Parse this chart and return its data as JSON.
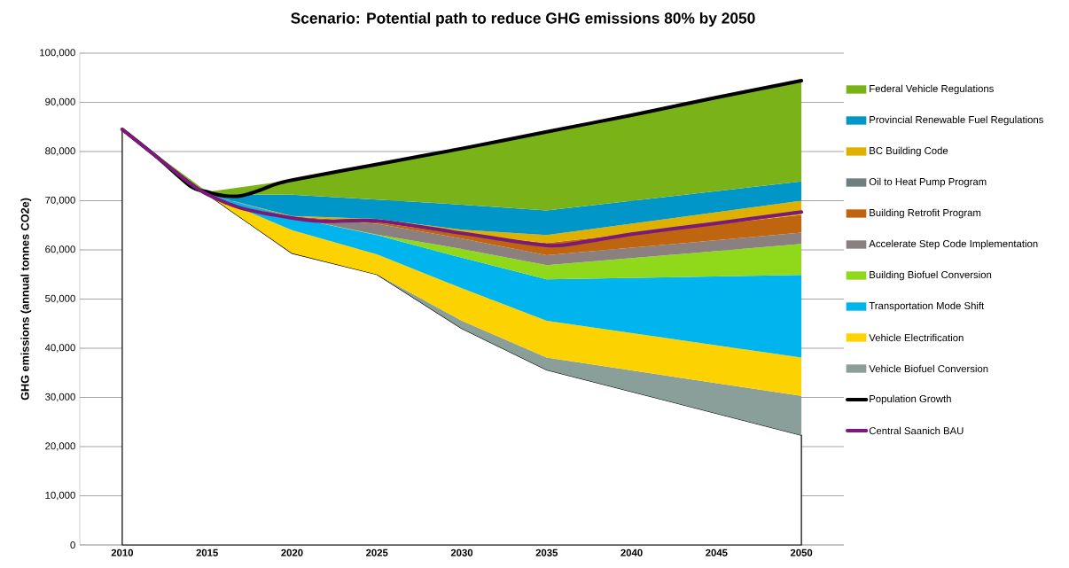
{
  "chart_data": {
    "type": "area",
    "title": "Scenario: Potential path to reduce GHG emissions 80% by 2050",
    "ylabel": "GHG emissions (annual tonnes CO2e)",
    "x": [
      2010,
      2015,
      2020,
      2025,
      2030,
      2035,
      2050
    ],
    "stacked": true,
    "grid": "y",
    "legend": "right",
    "xlim": [
      2007.5,
      2052.5
    ],
    "ylim": [
      0,
      100000
    ],
    "xticks": [
      2010,
      2015,
      2020,
      2025,
      2030,
      2035,
      2040,
      2045,
      2050
    ],
    "yticks": [
      0,
      {
        "value": 10000,
        "label": "10,000"
      },
      {
        "value": 20000,
        "label": "20,000"
      },
      {
        "value": 30000,
        "label": "30,000"
      },
      {
        "value": 40000,
        "label": "40,000"
      },
      {
        "value": 50000,
        "label": "50,000"
      },
      {
        "value": 60000,
        "label": "60,000"
      },
      {
        "value": 70000,
        "label": "70,000"
      },
      {
        "value": 80000,
        "label": "80,000"
      },
      {
        "value": 90000,
        "label": "90,000"
      },
      {
        "value": 100000,
        "label": "100,000"
      }
    ],
    "series": [
      {
        "color": "#ffffff",
        "values": [
          84500,
          71300,
          59300,
          55000,
          44000,
          35600,
          22300
        ]
      },
      {
        "name": "Vehicle Biofuel Conversion",
        "color": "#8a9e9a",
        "values": [
          0,
          0,
          0,
          0,
          1600,
          2500,
          8000
        ]
      },
      {
        "name": "Vehicle Electrification",
        "color": "#fcd200",
        "values": [
          0,
          0,
          4700,
          4100,
          6600,
          7500,
          7800
        ]
      },
      {
        "name": "Transportation Mode Shift",
        "color": "#00b4ee",
        "values": [
          0,
          0,
          2600,
          3900,
          6200,
          8400,
          16800
        ]
      },
      {
        "name": "Building Biofuel Conversion",
        "color": "#8fd81a",
        "values": [
          0,
          0,
          0,
          100,
          1800,
          2900,
          6300
        ]
      },
      {
        "name": "Accelerate Step Code Implementation",
        "color": "#8a8080",
        "values": [
          0,
          0,
          0,
          2200,
          2100,
          2000,
          2300
        ]
      },
      {
        "name": "Building Retrofit Program",
        "color": "#c0650f",
        "values": [
          0,
          0,
          200,
          300,
          900,
          2500,
          3600
        ]
      },
      {
        "name": "Oil to Heat Pump Program",
        "color": "#6e7f80",
        "values": [
          null,
          null,
          null,
          null,
          null,
          null,
          null
        ]
      },
      {
        "name": "BC Building Code",
        "color": "#e0b000",
        "values": [
          0,
          0,
          100,
          700,
          900,
          1600,
          2900
        ]
      },
      {
        "name": "Provincial Renewable Fuel Regulations",
        "color": "#0096c8",
        "values": [
          0,
          0,
          4300,
          3900,
          5100,
          5000,
          3900
        ]
      },
      {
        "name": "Federal Vehicle Regulations",
        "color": "#7ab317",
        "values": [
          0,
          500,
          3000,
          7200,
          11400,
          16000,
          20500
        ]
      },
      {
        "name": "Population Growth",
        "type": "line",
        "color": "#000000",
        "x": [
          2010,
          2012,
          2014,
          2015,
          2016,
          2017,
          2018,
          2019,
          2020,
          2025,
          2030,
          2035,
          2040,
          2045,
          2050
        ],
        "values": [
          84500,
          79000,
          73000,
          71800,
          71000,
          71000,
          72000,
          73300,
          74200,
          77400,
          80600,
          84000,
          87400,
          91000,
          94400
        ]
      },
      {
        "name": "Central Saanich BAU",
        "type": "line",
        "color": "#7b1a78",
        "x": [
          2010,
          2012,
          2014,
          2015,
          2017,
          2020,
          2022,
          2025,
          2030,
          2035,
          2037,
          2040,
          2045,
          2050
        ],
        "values": [
          84500,
          79000,
          73500,
          71300,
          68500,
          66500,
          65800,
          65900,
          63400,
          60900,
          61500,
          63200,
          65400,
          67700
        ]
      }
    ]
  }
}
